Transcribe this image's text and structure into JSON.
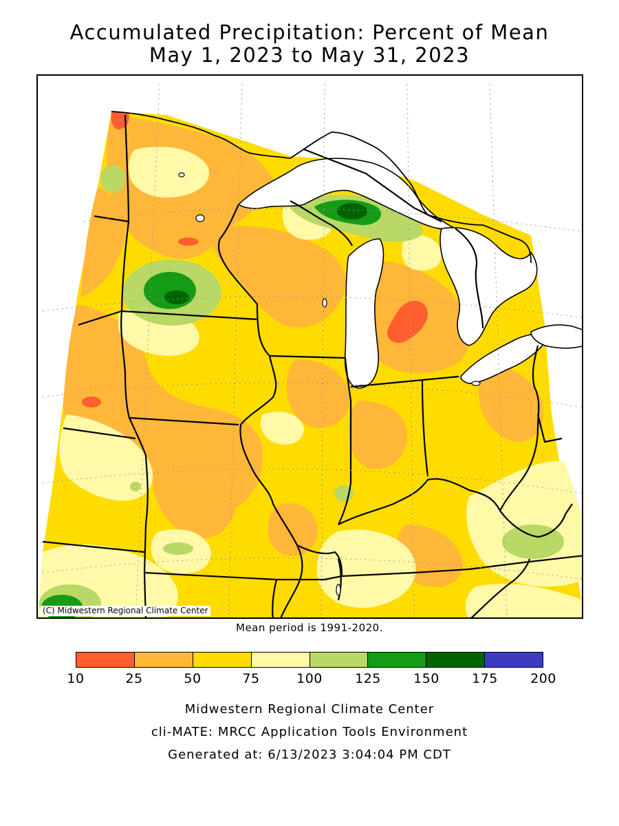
{
  "title": {
    "line1": "Accumulated Precipitation: Percent of Mean",
    "line2": "May 1, 2023 to May 31, 2023"
  },
  "map": {
    "copyright": "(C) Midwestern Regional Climate Center",
    "mean_period": "Mean period is 1991-2020."
  },
  "legend": {
    "bins": [
      {
        "from": 10,
        "to": 25,
        "color": "#ff5f2e"
      },
      {
        "from": 25,
        "to": 50,
        "color": "#ffb73a"
      },
      {
        "from": 50,
        "to": 75,
        "color": "#ffdc00"
      },
      {
        "from": 75,
        "to": 100,
        "color": "#fff9a8"
      },
      {
        "from": 100,
        "to": 125,
        "color": "#b9d866"
      },
      {
        "from": 125,
        "to": 150,
        "color": "#159b16"
      },
      {
        "from": 150,
        "to": 175,
        "color": "#006400"
      },
      {
        "from": 175,
        "to": 200,
        "color": "#3c3cbe"
      }
    ],
    "ticks": [
      "10",
      "25",
      "50",
      "75",
      "100",
      "125",
      "150",
      "175",
      "200"
    ]
  },
  "footer": {
    "line1": "Midwestern Regional Climate Center",
    "line2": "cli-MATE: MRCC Application Tools Environment",
    "line3": "Generated at: 6/13/2023 3:04:04 PM CDT"
  }
}
